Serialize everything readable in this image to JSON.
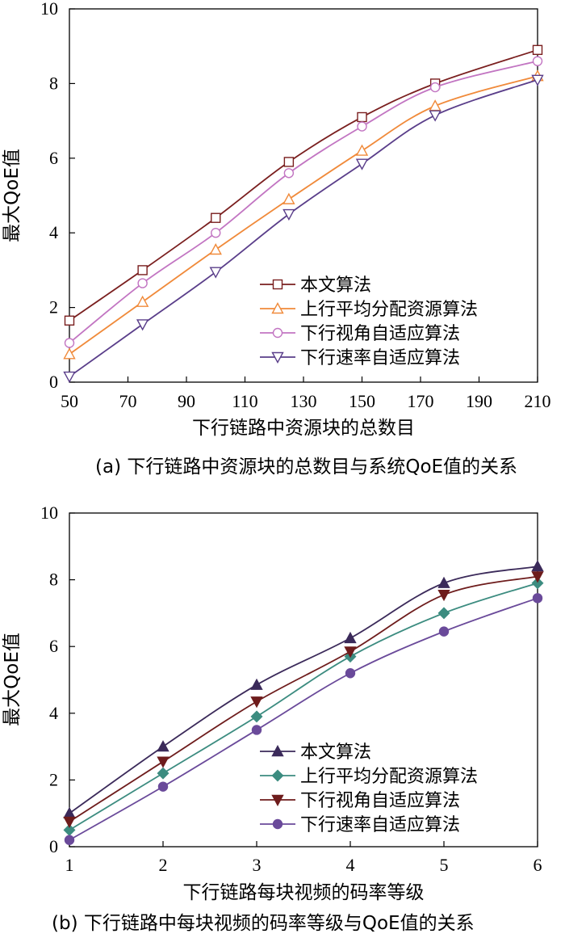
{
  "chart_data": [
    {
      "type": "line",
      "caption": "(a) 下行链路中资源块的总数目与系统QoE值的关系",
      "xlabel": "下行链路中资源块的总数目",
      "ylabel": "最大QoE值",
      "xlim": [
        50,
        210
      ],
      "ylim": [
        0,
        10
      ],
      "xticks": [
        "50",
        "70",
        "90",
        "110",
        "130",
        "150",
        "170",
        "190",
        "210"
      ],
      "yticks": [
        "0",
        "2",
        "4",
        "6",
        "8",
        "10"
      ],
      "x": [
        50,
        75,
        100,
        125,
        150,
        175,
        210
      ],
      "legend_position": "bottom-right",
      "series": [
        {
          "name": "本文算法",
          "marker": "square",
          "color": "#7a1f1f",
          "values": [
            1.65,
            3.0,
            4.4,
            5.9,
            7.1,
            8.0,
            8.9
          ]
        },
        {
          "name": "上行平均分配资源算法",
          "marker": "triangle-up",
          "color": "#f08a3a",
          "values": [
            0.75,
            2.15,
            3.55,
            4.9,
            6.2,
            7.4,
            8.2
          ]
        },
        {
          "name": "下行视角自适应算法",
          "marker": "circle",
          "color": "#c275c2",
          "values": [
            1.05,
            2.65,
            4.0,
            5.6,
            6.85,
            7.9,
            8.6
          ]
        },
        {
          "name": "下行速率自适应算法",
          "marker": "triangle-down",
          "color": "#5a3e8a",
          "values": [
            0.15,
            1.55,
            2.95,
            4.5,
            5.85,
            7.15,
            8.1
          ]
        }
      ]
    },
    {
      "type": "line",
      "caption": "(b) 下行链路中每块视频的码率等级与QoE值的关系",
      "xlabel": "下行链路每块视频的码率等级",
      "ylabel": "最大QoE值",
      "xlim": [
        1,
        6
      ],
      "ylim": [
        0,
        10
      ],
      "xticks": [
        "1",
        "2",
        "3",
        "4",
        "5",
        "6"
      ],
      "yticks": [
        "0",
        "2",
        "4",
        "6",
        "8",
        "10"
      ],
      "x": [
        1,
        2,
        3,
        4,
        5,
        6
      ],
      "legend_position": "bottom-right",
      "series": [
        {
          "name": "本文算法",
          "marker": "filled-triangle-up",
          "color": "#3b2a5a",
          "values": [
            1.0,
            3.0,
            4.85,
            6.25,
            7.9,
            8.4
          ]
        },
        {
          "name": "上行平均分配资源算法",
          "marker": "filled-diamond",
          "color": "#3c8c80",
          "values": [
            0.5,
            2.2,
            3.9,
            5.7,
            7.0,
            7.9
          ]
        },
        {
          "name": "下行视角自适应算法",
          "marker": "filled-triangle-down",
          "color": "#6e1c1c",
          "values": [
            0.75,
            2.55,
            4.35,
            5.85,
            7.55,
            8.1
          ]
        },
        {
          "name": "下行速率自适应算法",
          "marker": "filled-circle",
          "color": "#6a4a9a",
          "values": [
            0.2,
            1.8,
            3.5,
            5.2,
            6.45,
            7.45
          ]
        }
      ]
    }
  ]
}
